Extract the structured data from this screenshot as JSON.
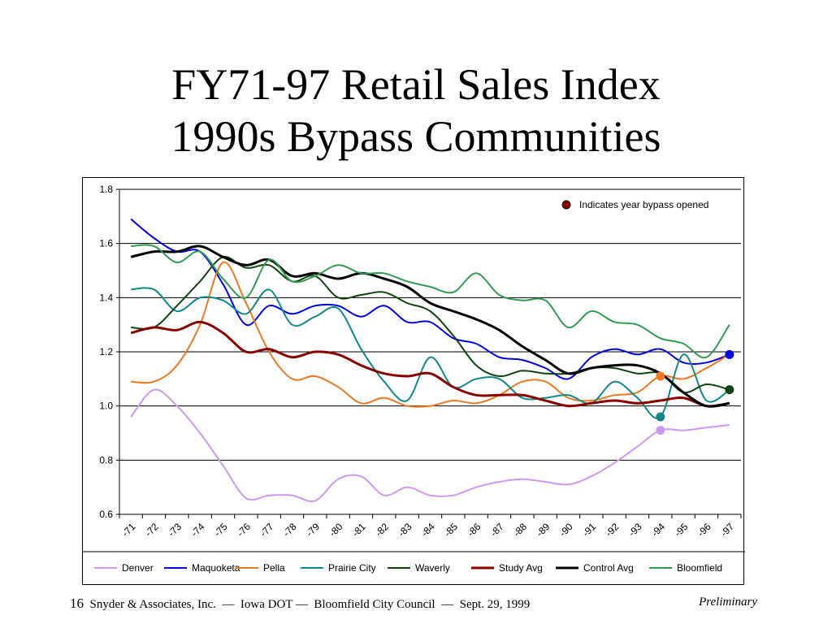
{
  "slide": {
    "title_line1": "FY71-97 Retail Sales Index",
    "title_line2": "1990s Bypass Communities",
    "page_number": "16",
    "footer_text": "Snyder & Associates, Inc.  —  Iowa DOT —  Bloomfield City Council  —  Sept. 29, 1999",
    "footer_status": "Preliminary"
  },
  "chart_data": {
    "type": "line",
    "title": "",
    "xlabel": "",
    "ylabel": "",
    "ylim": [
      0.6,
      1.8
    ],
    "yticks": [
      "0.6",
      "0.8",
      "1.0",
      "1.2",
      "1.4",
      "1.6",
      "1.8"
    ],
    "grid": true,
    "legend_placement": "bottom",
    "annotation": "Indicates year bypass opened",
    "annotation_marker_color": "#8b0000",
    "categories": [
      "-71",
      "-72",
      "-73",
      "-74",
      "-75",
      "-76",
      "-77",
      "-78",
      "-79",
      "-80",
      "-81",
      "-82",
      "-83",
      "-84",
      "-85",
      "-86",
      "-87",
      "-88",
      "-89",
      "-90",
      "-91",
      "-92",
      "-93",
      "-94",
      "-95",
      "-96",
      "-97"
    ],
    "series": [
      {
        "name": "Denver",
        "color": "#cc99ee",
        "width": 2,
        "values": [
          0.96,
          1.06,
          1.0,
          0.9,
          0.78,
          0.66,
          0.67,
          0.67,
          0.65,
          0.73,
          0.74,
          0.67,
          0.7,
          0.67,
          0.67,
          0.7,
          0.72,
          0.73,
          0.72,
          0.71,
          0.74,
          0.79,
          0.85,
          0.91,
          0.91,
          0.92,
          0.93
        ],
        "bypass_index": 23
      },
      {
        "name": "Maquoketa",
        "color": "#0000dd",
        "width": 2,
        "values": [
          1.69,
          1.62,
          1.57,
          1.57,
          1.45,
          1.3,
          1.37,
          1.34,
          1.37,
          1.37,
          1.33,
          1.37,
          1.31,
          1.31,
          1.25,
          1.23,
          1.18,
          1.17,
          1.14,
          1.1,
          1.18,
          1.21,
          1.19,
          1.21,
          1.16,
          1.16,
          1.19
        ],
        "bypass_index": 26
      },
      {
        "name": "Pella",
        "color": "#ee7722",
        "width": 2,
        "values": [
          1.09,
          1.09,
          1.15,
          1.3,
          1.53,
          1.38,
          1.2,
          1.1,
          1.11,
          1.07,
          1.01,
          1.03,
          1.0,
          1.0,
          1.02,
          1.01,
          1.04,
          1.09,
          1.09,
          1.03,
          1.02,
          1.04,
          1.05,
          1.11,
          1.1,
          1.14,
          1.19
        ],
        "bypass_index": 23
      },
      {
        "name": "Prairie City",
        "color": "#118888",
        "width": 2,
        "values": [
          1.43,
          1.43,
          1.35,
          1.4,
          1.39,
          1.34,
          1.43,
          1.3,
          1.33,
          1.36,
          1.21,
          1.09,
          1.02,
          1.18,
          1.07,
          1.1,
          1.1,
          1.03,
          1.03,
          1.04,
          1.01,
          1.09,
          1.03,
          0.96,
          1.19,
          1.02,
          1.06
        ],
        "bypass_index": 23
      },
      {
        "name": "Waverly",
        "color": "#114411",
        "width": 2,
        "values": [
          1.29,
          1.29,
          1.37,
          1.46,
          1.55,
          1.51,
          1.52,
          1.46,
          1.48,
          1.4,
          1.41,
          1.42,
          1.38,
          1.35,
          1.26,
          1.15,
          1.11,
          1.13,
          1.12,
          1.12,
          1.14,
          1.14,
          1.12,
          1.12,
          1.05,
          1.08,
          1.06
        ],
        "bypass_index": 26
      },
      {
        "name": "Study Avg",
        "color": "#880000",
        "width": 3,
        "values": [
          1.27,
          1.29,
          1.28,
          1.31,
          1.27,
          1.2,
          1.21,
          1.18,
          1.2,
          1.19,
          1.15,
          1.12,
          1.11,
          1.12,
          1.07,
          1.04,
          1.04,
          1.04,
          1.02,
          1.0,
          1.01,
          1.02,
          1.01,
          1.02,
          1.03,
          1.0,
          1.01
        ]
      },
      {
        "name": "Control Avg",
        "color": "#000000",
        "width": 3,
        "values": [
          1.55,
          1.57,
          1.57,
          1.59,
          1.55,
          1.52,
          1.54,
          1.48,
          1.49,
          1.47,
          1.49,
          1.47,
          1.44,
          1.38,
          1.35,
          1.32,
          1.28,
          1.22,
          1.17,
          1.12,
          1.14,
          1.15,
          1.15,
          1.12,
          1.05,
          1.0,
          1.01
        ]
      },
      {
        "name": "Bloomfield",
        "color": "#339955",
        "width": 2,
        "values": [
          1.59,
          1.59,
          1.53,
          1.57,
          1.47,
          1.4,
          1.54,
          1.46,
          1.48,
          1.52,
          1.49,
          1.49,
          1.46,
          1.44,
          1.42,
          1.49,
          1.41,
          1.39,
          1.39,
          1.29,
          1.35,
          1.31,
          1.3,
          1.25,
          1.23,
          1.18,
          1.3
        ]
      }
    ]
  }
}
